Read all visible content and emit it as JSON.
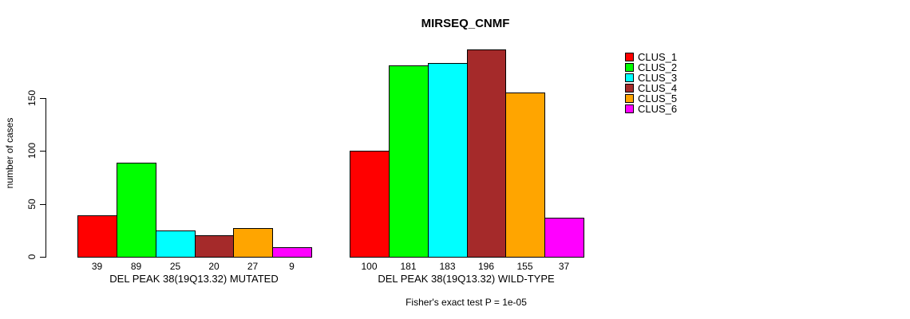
{
  "chart_data": {
    "type": "bar",
    "title": "MIRSEQ_CNMF",
    "ylabel": "number of cases",
    "yticks": [
      0,
      50,
      100,
      150
    ],
    "ylim": [
      0,
      207
    ],
    "grid": false,
    "legend_position": "right",
    "clusters": [
      {
        "label": "CLUS_1",
        "color": "#FF0000"
      },
      {
        "label": "CLUS_2",
        "color": "#00FF00"
      },
      {
        "label": "CLUS_3",
        "color": "#00FFFF"
      },
      {
        "label": "CLUS_4",
        "color": "#A52A2A"
      },
      {
        "label": "CLUS_5",
        "color": "#FFA500"
      },
      {
        "label": "CLUS_6",
        "color": "#FF00FF"
      }
    ],
    "groups": [
      {
        "label": "DEL PEAK 38(19Q13.32) MUTATED",
        "values": [
          39,
          89,
          25,
          20,
          27,
          9
        ]
      },
      {
        "label": "DEL PEAK 38(19Q13.32) WILD-TYPE",
        "values": [
          100,
          181,
          183,
          196,
          155,
          37
        ]
      }
    ],
    "annotation": "Fisher's exact test P = 1e-05"
  }
}
